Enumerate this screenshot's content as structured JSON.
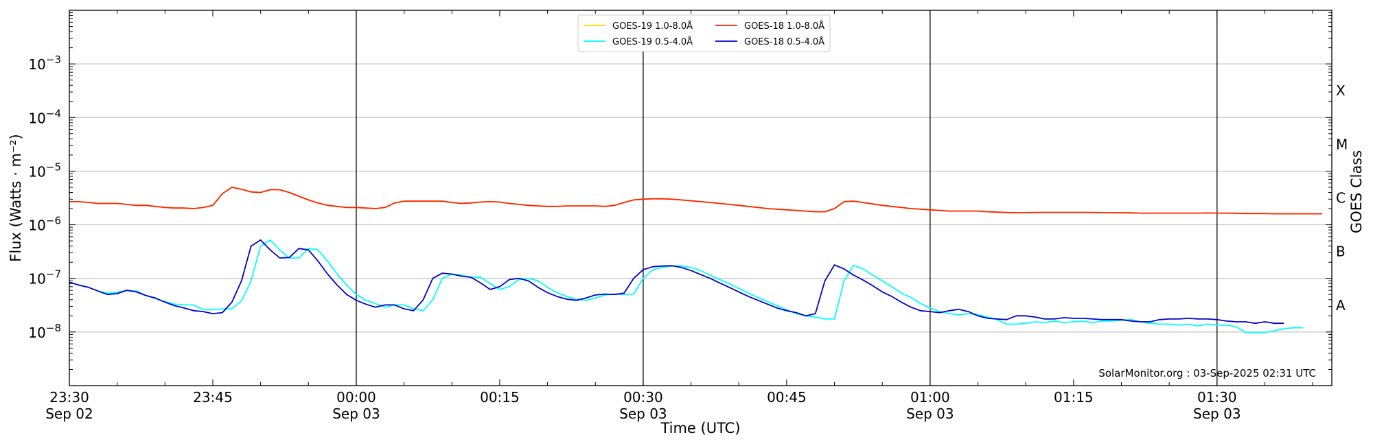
{
  "chart_data": {
    "type": "line",
    "xlabel": "Time (UTC)",
    "ylabel": "Flux (Watts · m⁻²)",
    "right_axis_label": "GOES Class",
    "y_scale": "log",
    "ylim": [
      1e-09,
      0.01
    ],
    "xlim": [
      "2025-09-02 23:30",
      "2025-09-03 01:42"
    ],
    "grid": "horizontal",
    "legend_position": "top-center",
    "credit": "SolarMonitor.org : 03-Sep-2025 02:31 UTC",
    "y_ticks": [
      {
        "value": 1e-08,
        "base": "10",
        "exp": "−8"
      },
      {
        "value": 1e-07,
        "base": "10",
        "exp": "−7"
      },
      {
        "value": 1e-06,
        "base": "10",
        "exp": "−6"
      },
      {
        "value": 1e-05,
        "base": "10",
        "exp": "−5"
      },
      {
        "value": 0.0001,
        "base": "10",
        "exp": "−4"
      },
      {
        "value": 0.001,
        "base": "10",
        "exp": "−3"
      }
    ],
    "x_ticks": [
      {
        "time": "2025-09-02 23:30",
        "line1": "23:30",
        "line2": "Sep 02"
      },
      {
        "time": "2025-09-02 23:45",
        "line1": "23:45",
        "line2": ""
      },
      {
        "time": "2025-09-03 00:00",
        "line1": "00:00",
        "line2": "Sep 03"
      },
      {
        "time": "2025-09-03 00:15",
        "line1": "00:15",
        "line2": ""
      },
      {
        "time": "2025-09-03 00:30",
        "line1": "00:30",
        "line2": "Sep 03"
      },
      {
        "time": "2025-09-03 00:45",
        "line1": "00:45",
        "line2": ""
      },
      {
        "time": "2025-09-03 01:00",
        "line1": "01:00",
        "line2": "Sep 03"
      },
      {
        "time": "2025-09-03 01:15",
        "line1": "01:15",
        "line2": ""
      },
      {
        "time": "2025-09-03 01:30",
        "line1": "01:30",
        "line2": "Sep 03"
      }
    ],
    "vertical_markers": [
      "2025-09-03 00:00",
      "2025-09-03 00:30",
      "2025-09-03 01:00",
      "2025-09-03 01:30"
    ],
    "goes_classes": [
      {
        "label": "A",
        "flux": 1e-08
      },
      {
        "label": "B",
        "flux": 1e-07
      },
      {
        "label": "C",
        "flux": 1e-06
      },
      {
        "label": "M",
        "flux": 1e-05
      },
      {
        "label": "X",
        "flux": 0.0001
      }
    ],
    "time_step_minutes": 1,
    "series": [
      {
        "name": "GOES-19 1.0-8.0Å",
        "color": "#ffd700",
        "start": "2025-09-02 23:30",
        "values": [
          2.7e-06,
          2.7e-06,
          2.6e-06,
          2.5e-06,
          2.5e-06,
          2.5e-06,
          2.4e-06,
          2.3e-06,
          2.3e-06,
          2.2e-06,
          2.1e-06,
          2.05e-06,
          2.05e-06,
          2e-06,
          2.1e-06,
          2.3e-06,
          3.8e-06,
          5e-06,
          4.6e-06,
          4.1e-06,
          4e-06,
          4.5e-06,
          4.5e-06,
          4e-06,
          3.4e-06,
          2.9e-06,
          2.55e-06,
          2.3e-06,
          2.2e-06,
          2.1e-06,
          2.1e-06,
          2.05e-06,
          2e-06,
          2.1e-06,
          2.55e-06,
          2.75e-06,
          2.75e-06,
          2.75e-06,
          2.75e-06,
          2.75e-06,
          2.6e-06,
          2.5e-06,
          2.55e-06,
          2.65e-06,
          2.7e-06,
          2.65e-06,
          2.5e-06,
          2.4e-06,
          2.3e-06,
          2.25e-06,
          2.2e-06,
          2.2e-06,
          2.25e-06,
          2.25e-06,
          2.25e-06,
          2.25e-06,
          2.2e-06,
          2.3e-06,
          2.6e-06,
          2.9e-06,
          3e-06,
          3.05e-06,
          3.05e-06,
          3e-06,
          2.9e-06,
          2.8e-06,
          2.7e-06,
          2.6e-06,
          2.5e-06,
          2.4e-06,
          2.3e-06,
          2.2e-06,
          2.1e-06,
          2e-06,
          1.95e-06,
          1.9e-06,
          1.85e-06,
          1.8e-06,
          1.75e-06,
          1.75e-06,
          2e-06,
          2.7e-06,
          2.75e-06,
          2.6e-06,
          2.45e-06,
          2.3e-06,
          2.2e-06,
          2.1e-06,
          2e-06,
          1.95e-06,
          1.9e-06,
          1.85e-06,
          1.8e-06,
          1.8e-06,
          1.8e-06,
          1.8e-06,
          1.75e-06,
          1.72e-06,
          1.7e-06,
          1.68e-06,
          1.68e-06,
          1.7e-06,
          1.7e-06,
          1.7e-06,
          1.7e-06,
          1.7e-06,
          1.7e-06,
          1.7e-06,
          1.68e-06,
          1.68e-06,
          1.67e-06,
          1.67e-06,
          1.65e-06,
          1.65e-06,
          1.65e-06,
          1.65e-06,
          1.65e-06,
          1.65e-06,
          1.65e-06,
          1.66e-06,
          1.65e-06,
          1.65e-06,
          1.64e-06,
          1.62e-06,
          1.62e-06,
          1.62e-06,
          1.6e-06,
          1.6e-06,
          1.6e-06,
          1.6e-06,
          1.6e-06,
          1.6e-06
        ]
      },
      {
        "name": "GOES-18 1.0-8.0Å",
        "color": "#ff2200",
        "start": "2025-09-02 23:30",
        "values": [
          2.7e-06,
          2.7e-06,
          2.6e-06,
          2.5e-06,
          2.5e-06,
          2.5e-06,
          2.4e-06,
          2.3e-06,
          2.3e-06,
          2.2e-06,
          2.1e-06,
          2.05e-06,
          2.05e-06,
          2e-06,
          2.1e-06,
          2.3e-06,
          3.8e-06,
          5e-06,
          4.6e-06,
          4.1e-06,
          4e-06,
          4.5e-06,
          4.5e-06,
          4e-06,
          3.4e-06,
          2.9e-06,
          2.55e-06,
          2.3e-06,
          2.2e-06,
          2.1e-06,
          2.1e-06,
          2.05e-06,
          2e-06,
          2.1e-06,
          2.55e-06,
          2.75e-06,
          2.75e-06,
          2.75e-06,
          2.75e-06,
          2.75e-06,
          2.6e-06,
          2.5e-06,
          2.55e-06,
          2.65e-06,
          2.7e-06,
          2.65e-06,
          2.5e-06,
          2.4e-06,
          2.3e-06,
          2.25e-06,
          2.2e-06,
          2.2e-06,
          2.25e-06,
          2.25e-06,
          2.25e-06,
          2.25e-06,
          2.2e-06,
          2.3e-06,
          2.6e-06,
          2.9e-06,
          3e-06,
          3.05e-06,
          3.05e-06,
          3e-06,
          2.9e-06,
          2.8e-06,
          2.7e-06,
          2.6e-06,
          2.5e-06,
          2.4e-06,
          2.3e-06,
          2.2e-06,
          2.1e-06,
          2e-06,
          1.95e-06,
          1.9e-06,
          1.85e-06,
          1.8e-06,
          1.75e-06,
          1.75e-06,
          2e-06,
          2.7e-06,
          2.75e-06,
          2.6e-06,
          2.45e-06,
          2.3e-06,
          2.2e-06,
          2.1e-06,
          2e-06,
          1.95e-06,
          1.9e-06,
          1.85e-06,
          1.8e-06,
          1.8e-06,
          1.8e-06,
          1.8e-06,
          1.75e-06,
          1.72e-06,
          1.7e-06,
          1.68e-06,
          1.68e-06,
          1.7e-06,
          1.7e-06,
          1.7e-06,
          1.7e-06,
          1.7e-06,
          1.7e-06,
          1.7e-06,
          1.68e-06,
          1.68e-06,
          1.67e-06,
          1.67e-06,
          1.65e-06,
          1.65e-06,
          1.65e-06,
          1.65e-06,
          1.65e-06,
          1.65e-06,
          1.65e-06,
          1.66e-06,
          1.65e-06,
          1.65e-06,
          1.64e-06,
          1.62e-06,
          1.62e-06,
          1.62e-06,
          1.6e-06,
          1.6e-06,
          1.6e-06,
          1.6e-06,
          1.6e-06,
          1.6e-06
        ]
      },
      {
        "name": "GOES-19 0.5-4.0Å",
        "color": "#00ffff",
        "start": "2025-09-02 23:30",
        "values": [
          8.5e-08,
          7.5e-08,
          6.8e-08,
          5.8e-08,
          5.3e-08,
          5.5e-08,
          6e-08,
          5.8e-08,
          4.8e-08,
          4.2e-08,
          3.7e-08,
          3.3e-08,
          3.2e-08,
          3.2e-08,
          2.6e-08,
          2.6e-08,
          2.7e-08,
          2.7e-08,
          3.8e-08,
          9e-08,
          4e-07,
          5.2e-07,
          3.4e-07,
          2.4e-07,
          2.4e-07,
          3.6e-07,
          3.4e-07,
          2.1e-07,
          1.2e-07,
          7.5e-08,
          5e-08,
          3.9e-08,
          3.4e-08,
          2.9e-08,
          3.2e-08,
          3.2e-08,
          2.7e-08,
          2.5e-08,
          4e-08,
          1e-07,
          1.2e-07,
          1.15e-07,
          1.05e-07,
          1.05e-07,
          8e-08,
          6.2e-08,
          7e-08,
          9.5e-08,
          1e-07,
          9e-08,
          6.8e-08,
          5.4e-08,
          4.6e-08,
          4.1e-08,
          3.9e-08,
          4.3e-08,
          4.9e-08,
          5.1e-08,
          5e-08,
          5.1e-08,
          1e-07,
          1.45e-07,
          1.6e-07,
          1.7e-07,
          1.7e-07,
          1.6e-07,
          1.4e-07,
          1.15e-07,
          9.5e-08,
          8e-08,
          6.5e-08,
          5.3e-08,
          4.4e-08,
          3.7e-08,
          3.1e-08,
          2.6e-08,
          2.2e-08,
          2e-08,
          1.9e-08,
          1.75e-08,
          1.75e-08,
          9e-08,
          1.75e-07,
          1.5e-07,
          1.15e-07,
          9e-08,
          7e-08,
          5.3e-08,
          4.4e-08,
          3.4e-08,
          2.8e-08,
          2.4e-08,
          2.2e-08,
          2.1e-08,
          2.2e-08,
          2.1e-08,
          1.9e-08,
          1.7e-08,
          1.4e-08,
          1.4e-08,
          1.45e-08,
          1.55e-08,
          1.5e-08,
          1.6e-08,
          1.5e-08,
          1.55e-08,
          1.6e-08,
          1.5e-08,
          1.6e-08,
          1.6e-08,
          1.65e-08,
          1.7e-08,
          1.55e-08,
          1.45e-08,
          1.4e-08,
          1.4e-08,
          1.35e-08,
          1.4e-08,
          1.3e-08,
          1.4e-08,
          1.35e-08,
          1.35e-08,
          1.25e-08,
          9.8e-09,
          9.8e-09,
          9.8e-09,
          1.05e-08,
          1.15e-08,
          1.2e-08,
          1.2e-08
        ]
      },
      {
        "name": "GOES-18 0.5-4.0Å",
        "color": "#0000cc",
        "start": "2025-09-02 23:30",
        "values": [
          8.5e-08,
          7.5e-08,
          6.8e-08,
          5.8e-08,
          5e-08,
          5.2e-08,
          6e-08,
          5.6e-08,
          4.8e-08,
          4.3e-08,
          3.6e-08,
          3.1e-08,
          2.8e-08,
          2.5e-08,
          2.4e-08,
          2.2e-08,
          2.3e-08,
          3.6e-08,
          9e-08,
          4e-07,
          5.2e-07,
          3.4e-07,
          2.4e-07,
          2.45e-07,
          3.6e-07,
          3.4e-07,
          2.1e-07,
          1.2e-07,
          7.5e-08,
          5e-08,
          3.9e-08,
          3.3e-08,
          2.9e-08,
          3.2e-08,
          3.2e-08,
          2.7e-08,
          2.5e-08,
          4e-08,
          1e-07,
          1.25e-07,
          1.2e-07,
          1.1e-07,
          1.05e-07,
          8.2e-08,
          6.2e-08,
          7e-08,
          9.5e-08,
          1e-07,
          9e-08,
          6.8e-08,
          5.4e-08,
          4.6e-08,
          4.1e-08,
          3.9e-08,
          4.3e-08,
          4.9e-08,
          5.1e-08,
          5e-08,
          5.3e-08,
          1e-07,
          1.45e-07,
          1.65e-07,
          1.7e-07,
          1.72e-07,
          1.6e-07,
          1.4e-07,
          1.18e-07,
          1e-07,
          8.2e-08,
          6.8e-08,
          5.6e-08,
          4.6e-08,
          3.9e-08,
          3.3e-08,
          2.8e-08,
          2.5e-08,
          2.3e-08,
          2e-08,
          2.2e-08,
          9e-08,
          1.78e-07,
          1.5e-07,
          1.15e-07,
          9.3e-08,
          7.3e-08,
          5.6e-08,
          4.6e-08,
          3.6e-08,
          2.9e-08,
          2.5e-08,
          2.4e-08,
          2.3e-08,
          2.5e-08,
          2.65e-08,
          2.4e-08,
          2e-08,
          1.8e-08,
          1.75e-08,
          1.7e-08,
          2e-08,
          2e-08,
          1.9e-08,
          1.75e-08,
          1.75e-08,
          1.85e-08,
          1.8e-08,
          1.8e-08,
          1.75e-08,
          1.7e-08,
          1.7e-08,
          1.7e-08,
          1.6e-08,
          1.55e-08,
          1.55e-08,
          1.7e-08,
          1.75e-08,
          1.75e-08,
          1.8e-08,
          1.75e-08,
          1.75e-08,
          1.7e-08,
          1.6e-08,
          1.55e-08,
          1.55e-08,
          1.45e-08,
          1.55e-08,
          1.45e-08,
          1.45e-08
        ]
      }
    ]
  }
}
